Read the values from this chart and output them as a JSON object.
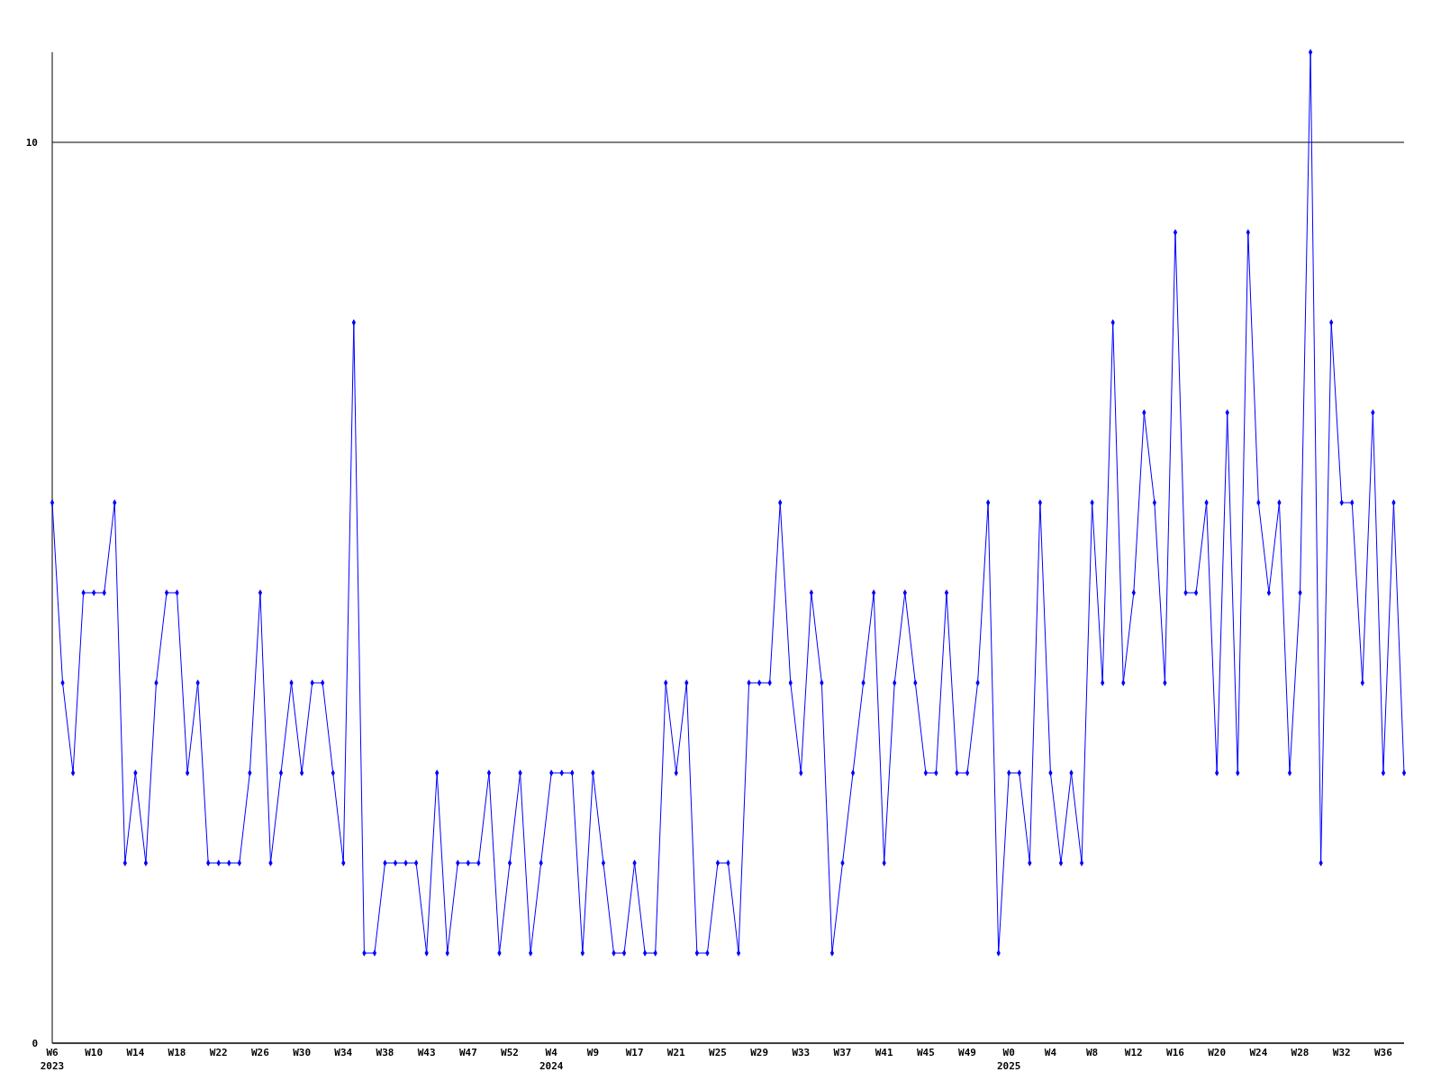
{
  "chart_data": {
    "type": "line",
    "categories": [
      "W6\n2023",
      null,
      null,
      null,
      "W10",
      null,
      null,
      null,
      "W14",
      null,
      null,
      null,
      "W18",
      null,
      null,
      null,
      "W22",
      null,
      null,
      null,
      "W26",
      null,
      null,
      null,
      "W30",
      null,
      null,
      null,
      "W34",
      null,
      null,
      null,
      "W38",
      null,
      null,
      null,
      "W43",
      null,
      null,
      null,
      "W47",
      null,
      null,
      null,
      "W52",
      null,
      null,
      null,
      "W4\n2024",
      null,
      null,
      null,
      "W9",
      null,
      null,
      null,
      "W17",
      null,
      null,
      null,
      "W21",
      null,
      null,
      null,
      "W25",
      null,
      null,
      null,
      "W29",
      null,
      null,
      null,
      "W33",
      null,
      null,
      null,
      "W37",
      null,
      null,
      null,
      "W41",
      null,
      null,
      null,
      "W45",
      null,
      null,
      null,
      "W49",
      null,
      null,
      null,
      "W0\n2025",
      null,
      null,
      null,
      "W4",
      null,
      null,
      null,
      "W8",
      null,
      null,
      null,
      "W12",
      null,
      null,
      null,
      "W16",
      null,
      null,
      null,
      "W20",
      null,
      null,
      null,
      "W24",
      null,
      null,
      null,
      "W28",
      null,
      null,
      null,
      "W32",
      null,
      null,
      null,
      "W36",
      null,
      null
    ],
    "series": [
      {
        "color": "#0000ff",
        "values": [
          6,
          4,
          3,
          5,
          5,
          5,
          6,
          2,
          3,
          2,
          4,
          5,
          5,
          3,
          4,
          2,
          2,
          2,
          2,
          3,
          5,
          2,
          3,
          4,
          3,
          4,
          4,
          3,
          2,
          8,
          1,
          1,
          2,
          2,
          2,
          2,
          1,
          3,
          1,
          2,
          2,
          2,
          3,
          1,
          2,
          3,
          1,
          2,
          3,
          3,
          3,
          1,
          3,
          2,
          1,
          1,
          2,
          1,
          1,
          4,
          3,
          4,
          1,
          1,
          2,
          2,
          1,
          4,
          4,
          4,
          6,
          4,
          3,
          5,
          4,
          1,
          2,
          3,
          4,
          5,
          2,
          4,
          5,
          4,
          3,
          3,
          5,
          3,
          3,
          4,
          6,
          1,
          3,
          3,
          2,
          6,
          3,
          2,
          3,
          2,
          6,
          4,
          8,
          4,
          5,
          7,
          6,
          4,
          9,
          5,
          5,
          6,
          3,
          7,
          3,
          9,
          6,
          5,
          6,
          3,
          5,
          11,
          2,
          8,
          6,
          6,
          4,
          7,
          3,
          6,
          3
        ]
      }
    ],
    "ylim": [
      0,
      11
    ],
    "yticks": [
      0,
      10
    ],
    "grid": "y",
    "marker": "diamond",
    "line_style": "solid"
  }
}
